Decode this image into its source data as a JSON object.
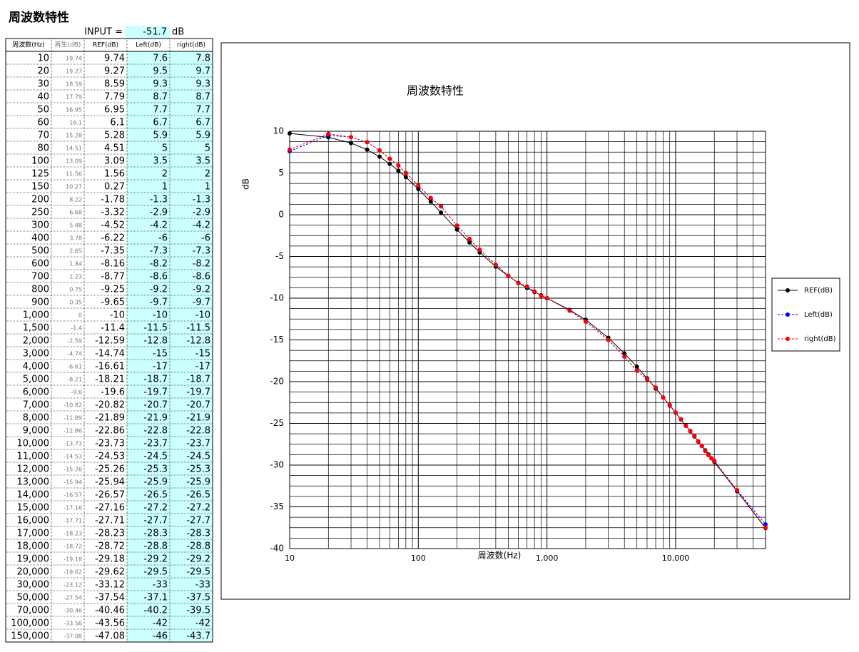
{
  "header": {
    "title": "周波数特性",
    "input_label": "INPUT =",
    "input_value": "-51.7",
    "input_unit": "dB"
  },
  "table": {
    "columns": [
      "周波数(Hz)",
      "再生(dB)",
      "REF(dB)",
      "Left(dB)",
      "right(dB)"
    ],
    "rows": [
      [
        "10",
        "19.74",
        "9.74",
        "7.6",
        "7.8"
      ],
      [
        "20",
        "19.27",
        "9.27",
        "9.5",
        "9.7"
      ],
      [
        "30",
        "18.59",
        "8.59",
        "9.3",
        "9.3"
      ],
      [
        "40",
        "17.79",
        "7.79",
        "8.7",
        "8.7"
      ],
      [
        "50",
        "16.95",
        "6.95",
        "7.7",
        "7.7"
      ],
      [
        "60",
        "16.1",
        "6.1",
        "6.7",
        "6.7"
      ],
      [
        "70",
        "15.28",
        "5.28",
        "5.9",
        "5.9"
      ],
      [
        "80",
        "14.51",
        "4.51",
        "5",
        "5"
      ],
      [
        "100",
        "13.09",
        "3.09",
        "3.5",
        "3.5"
      ],
      [
        "125",
        "11.56",
        "1.56",
        "2",
        "2"
      ],
      [
        "150",
        "10.27",
        "0.27",
        "1",
        "1"
      ],
      [
        "200",
        "8.22",
        "-1.78",
        "-1.3",
        "-1.3"
      ],
      [
        "250",
        "6.68",
        "-3.32",
        "-2.9",
        "-2.9"
      ],
      [
        "300",
        "5.48",
        "-4.52",
        "-4.2",
        "-4.2"
      ],
      [
        "400",
        "3.78",
        "-6.22",
        "-6",
        "-6"
      ],
      [
        "500",
        "2.65",
        "-7.35",
        "-7.3",
        "-7.3"
      ],
      [
        "600",
        "1.84",
        "-8.16",
        "-8.2",
        "-8.2"
      ],
      [
        "700",
        "1.23",
        "-8.77",
        "-8.6",
        "-8.6"
      ],
      [
        "800",
        "0.75",
        "-9.25",
        "-9.2",
        "-9.2"
      ],
      [
        "900",
        "0.35",
        "-9.65",
        "-9.7",
        "-9.7"
      ],
      [
        "1,000",
        "0",
        "-10",
        "-10",
        "-10"
      ],
      [
        "1,500",
        "-1.4",
        "-11.4",
        "-11.5",
        "-11.5"
      ],
      [
        "2,000",
        "-2.59",
        "-12.59",
        "-12.8",
        "-12.8"
      ],
      [
        "3,000",
        "-4.74",
        "-14.74",
        "-15",
        "-15"
      ],
      [
        "4,000",
        "-6.61",
        "-16.61",
        "-17",
        "-17"
      ],
      [
        "5,000",
        "-8.21",
        "-18.21",
        "-18.7",
        "-18.7"
      ],
      [
        "6,000",
        "-9.6",
        "-19.6",
        "-19.7",
        "-19.7"
      ],
      [
        "7,000",
        "-10.82",
        "-20.82",
        "-20.7",
        "-20.7"
      ],
      [
        "8,000",
        "-11.89",
        "-21.89",
        "-21.9",
        "-21.9"
      ],
      [
        "9,000",
        "-12.86",
        "-22.86",
        "-22.8",
        "-22.8"
      ],
      [
        "10,000",
        "-13.73",
        "-23.73",
        "-23.7",
        "-23.7"
      ],
      [
        "11,000",
        "-14.53",
        "-24.53",
        "-24.5",
        "-24.5"
      ],
      [
        "12,000",
        "-15.26",
        "-25.26",
        "-25.3",
        "-25.3"
      ],
      [
        "13,000",
        "-15.94",
        "-25.94",
        "-25.9",
        "-25.9"
      ],
      [
        "14,000",
        "-16.57",
        "-26.57",
        "-26.5",
        "-26.5"
      ],
      [
        "15,000",
        "-17.16",
        "-27.16",
        "-27.2",
        "-27.2"
      ],
      [
        "16,000",
        "-17.71",
        "-27.71",
        "-27.7",
        "-27.7"
      ],
      [
        "17,000",
        "-18.23",
        "-28.23",
        "-28.3",
        "-28.3"
      ],
      [
        "18,000",
        "-18.72",
        "-28.72",
        "-28.8",
        "-28.8"
      ],
      [
        "19,000",
        "-19.18",
        "-29.18",
        "-29.2",
        "-29.2"
      ],
      [
        "20,000",
        "-19.62",
        "-29.62",
        "-29.5",
        "-29.5"
      ],
      [
        "30,000",
        "-23.12",
        "-33.12",
        "-33",
        "-33"
      ],
      [
        "50,000",
        "-27.54",
        "-37.54",
        "-37.1",
        "-37.5"
      ],
      [
        "70,000",
        "-30.46",
        "-40.46",
        "-40.2",
        "-39.5"
      ],
      [
        "100,000",
        "-33.56",
        "-43.56",
        "-42",
        "-42"
      ],
      [
        "150,000",
        "-37.08",
        "-47.08",
        "-46",
        "-43.7"
      ]
    ]
  },
  "chart_data": {
    "type": "line",
    "title": "周波数特性",
    "x_label": "周波数(Hz)",
    "y_label": "dB",
    "log_x": true,
    "grid": true,
    "legend": "right",
    "x": [
      10,
      20,
      30,
      40,
      50,
      60,
      70,
      80,
      100,
      125,
      150,
      200,
      250,
      300,
      400,
      500,
      600,
      700,
      800,
      900,
      1000,
      1500,
      2000,
      3000,
      4000,
      5000,
      6000,
      7000,
      8000,
      9000,
      10000,
      11000,
      12000,
      13000,
      14000,
      15000,
      16000,
      17000,
      18000,
      19000,
      20000,
      30000,
      50000
    ],
    "series": [
      {
        "name": "REF(dB)",
        "color": "#000000",
        "dashed": false,
        "values": [
          9.74,
          9.27,
          8.59,
          7.79,
          6.95,
          6.1,
          5.28,
          4.51,
          3.09,
          1.56,
          0.27,
          -1.78,
          -3.32,
          -4.52,
          -6.22,
          -7.35,
          -8.16,
          -8.77,
          -9.25,
          -9.65,
          -10,
          -11.4,
          -12.59,
          -14.74,
          -16.61,
          -18.21,
          -19.6,
          -20.82,
          -21.89,
          -22.86,
          -23.73,
          -24.53,
          -25.26,
          -25.94,
          -26.57,
          -27.16,
          -27.71,
          -28.23,
          -28.72,
          -29.18,
          -29.62,
          -33.12,
          -37.54
        ]
      },
      {
        "name": "Left(dB)",
        "color": "#0000ff",
        "dashed": true,
        "values": [
          7.6,
          9.5,
          9.3,
          8.7,
          7.7,
          6.7,
          5.9,
          5,
          3.5,
          2,
          1,
          -1.3,
          -2.9,
          -4.2,
          -6,
          -7.3,
          -8.2,
          -8.6,
          -9.2,
          -9.7,
          -10,
          -11.5,
          -12.8,
          -15,
          -17,
          -18.7,
          -19.7,
          -20.7,
          -21.9,
          -22.8,
          -23.7,
          -24.5,
          -25.3,
          -25.9,
          -26.5,
          -27.2,
          -27.7,
          -28.3,
          -28.8,
          -29.2,
          -29.5,
          -33,
          -37.1
        ]
      },
      {
        "name": "right(dB)",
        "color": "#ff0000",
        "dashed": true,
        "values": [
          7.8,
          9.7,
          9.3,
          8.7,
          7.7,
          6.7,
          5.9,
          5,
          3.5,
          2,
          1,
          -1.3,
          -2.9,
          -4.2,
          -6,
          -7.3,
          -8.2,
          -8.6,
          -9.2,
          -9.7,
          -10,
          -11.5,
          -12.8,
          -15,
          -17,
          -18.7,
          -19.7,
          -20.7,
          -21.9,
          -22.8,
          -23.7,
          -24.5,
          -25.3,
          -25.9,
          -26.5,
          -27.2,
          -27.7,
          -28.3,
          -28.8,
          -29.2,
          -29.5,
          -33,
          -37.5
        ]
      }
    ],
    "xlim": [
      10,
      50000
    ],
    "ylim": [
      -40,
      10
    ],
    "xticks": [
      10,
      100,
      {
        "value": 1000,
        "label": "1,000"
      },
      {
        "value": 10000,
        "label": "10,000"
      }
    ],
    "yticks": [
      -40,
      -35,
      -30,
      -25,
      -20,
      -15,
      -10,
      -5,
      0,
      5,
      10
    ]
  }
}
